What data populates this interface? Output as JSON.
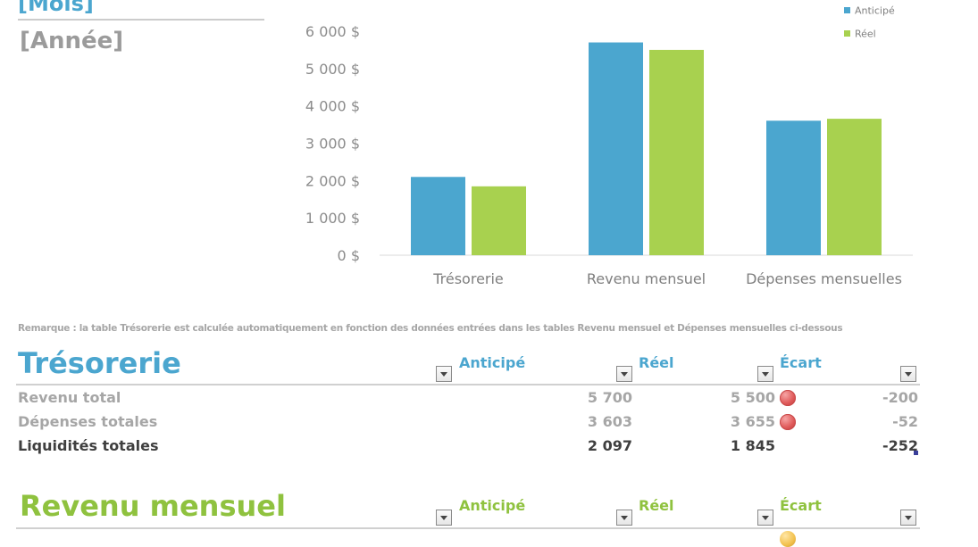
{
  "header": {
    "month": "[Mois]",
    "year": "[Année]"
  },
  "chart_data": {
    "type": "bar",
    "categories": [
      "Trésorerie",
      "Revenu mensuel",
      "Dépenses mensuelles"
    ],
    "series": [
      {
        "name": "Anticipé",
        "values": [
          2097,
          5700,
          3603
        ],
        "color": "#4ba6cf"
      },
      {
        "name": "Réel",
        "values": [
          1845,
          5500,
          3655
        ],
        "color": "#a8d14f"
      }
    ],
    "ylim": [
      0,
      6000
    ],
    "yticks": [
      0,
      1000,
      2000,
      3000,
      4000,
      5000,
      6000
    ],
    "ytick_labels": [
      "0 $",
      "1 000 $",
      "2 000 $",
      "3 000 $",
      "4 000 $",
      "5 000 $",
      "6 000 $"
    ],
    "legend_position": "top-right",
    "grid": false
  },
  "remark": "Remarque : la table Trésorerie est calculée automatiquement en fonction des données entrées dans les tables Revenu mensuel et Dépenses mensuelles ci-dessous",
  "tresorerie": {
    "title": "Trésorerie",
    "title_color": "#4ba6cf",
    "columns": [
      "Anticipé",
      "Réel",
      "Écart"
    ],
    "rows": [
      {
        "label": "Revenu total",
        "anticipe": "5 700",
        "reel": "5 500",
        "ecart": "-200",
        "flag": "red"
      },
      {
        "label": "Dépenses totales",
        "anticipe": "3 603",
        "reel": "3 655",
        "ecart": "-52",
        "flag": "red"
      },
      {
        "label": "Liquidités totales",
        "anticipe": "2 097",
        "reel": "1 845",
        "ecart": "-252",
        "flag": ""
      }
    ]
  },
  "revenu": {
    "title": "Revenu mensuel",
    "title_color": "#8fc23f",
    "columns": [
      "Anticipé",
      "Réel",
      "Écart"
    ]
  }
}
